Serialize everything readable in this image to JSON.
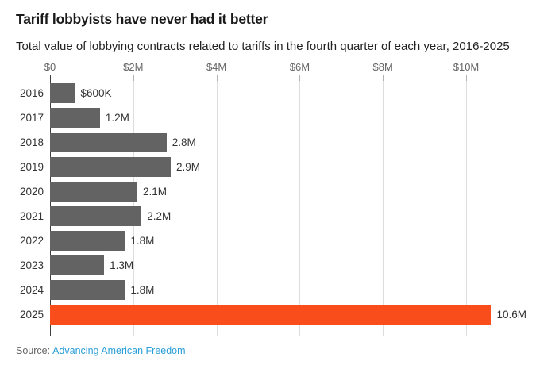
{
  "chart_data": {
    "type": "bar",
    "orientation": "horizontal",
    "title": "Tariff lobbyists have never had it better",
    "subtitle": "Total value of lobbying contracts related to tariffs in the fourth quarter of each year, 2016-2025",
    "unit": "USD millions",
    "categories": [
      "2016",
      "2017",
      "2018",
      "2019",
      "2020",
      "2021",
      "2022",
      "2023",
      "2024",
      "2025"
    ],
    "values": [
      0.6,
      1.2,
      2.8,
      2.9,
      2.1,
      2.2,
      1.8,
      1.3,
      1.8,
      10.6
    ],
    "value_labels": [
      "$600K",
      "1.2M",
      "2.8M",
      "2.9M",
      "2.1M",
      "2.2M",
      "1.8M",
      "1.3M",
      "1.8M",
      "10.6M"
    ],
    "x_ticks": [
      {
        "value": 0,
        "label": "$0"
      },
      {
        "value": 2,
        "label": "$2M"
      },
      {
        "value": 4,
        "label": "$4M"
      },
      {
        "value": 6,
        "label": "$6M"
      },
      {
        "value": 8,
        "label": "$8M"
      },
      {
        "value": 10,
        "label": "$10M"
      }
    ],
    "xlim": [
      0,
      11.97
    ],
    "grid": "vertical",
    "legend": "none",
    "highlight_category": "2025",
    "bar_color": "#636363",
    "highlight_color": "#fa4d1c"
  },
  "source": {
    "prefix": "Source:",
    "link_text": "Advancing American Freedom"
  },
  "colors": {
    "link": "#2b9fd9",
    "axis_line": "#404040",
    "gridline": "#dddddd",
    "text_dark": "#333333",
    "text_muted": "#666666"
  }
}
